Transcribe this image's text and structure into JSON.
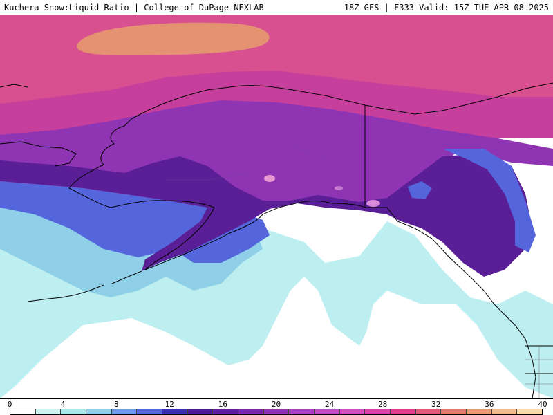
{
  "header": {
    "left": "Kuchera Snow:Liquid Ratio | College of DuPage NEXLAB",
    "right": "18Z GFS | F333 Valid: 15Z TUE APR 08 2025"
  },
  "colorbar": {
    "ticks": [
      "0",
      "4",
      "8",
      "12",
      "16",
      "20",
      "24",
      "28",
      "32",
      "36",
      "40"
    ],
    "colors": [
      "#ffffff",
      "#cdf2f0",
      "#a8e7ea",
      "#8fd0e8",
      "#6f9be6",
      "#5566dd",
      "#3b2fb5",
      "#4c1a93",
      "#5e1f9a",
      "#7a2aa8",
      "#8f35b3",
      "#a642bd",
      "#bc4dc3",
      "#cf4fbd",
      "#dc3fa6",
      "#e23b8c",
      "#e2577a",
      "#e47a6e",
      "#e89a77",
      "#f0bd90",
      "#f7dcb0"
    ]
  },
  "map": {
    "region": "Alaska and northwestern Canada",
    "ocean_color": "#ffffff",
    "fill_colors": {
      "pink_north": "#d8508f",
      "peach_core": "#e59273",
      "magenta": "#c63f9c",
      "purple": "#8f35b3",
      "deep_purple": "#5a1f96",
      "blue": "#5566dd",
      "light_blue": "#8fd0e8",
      "cyan": "#bdeef0"
    }
  }
}
